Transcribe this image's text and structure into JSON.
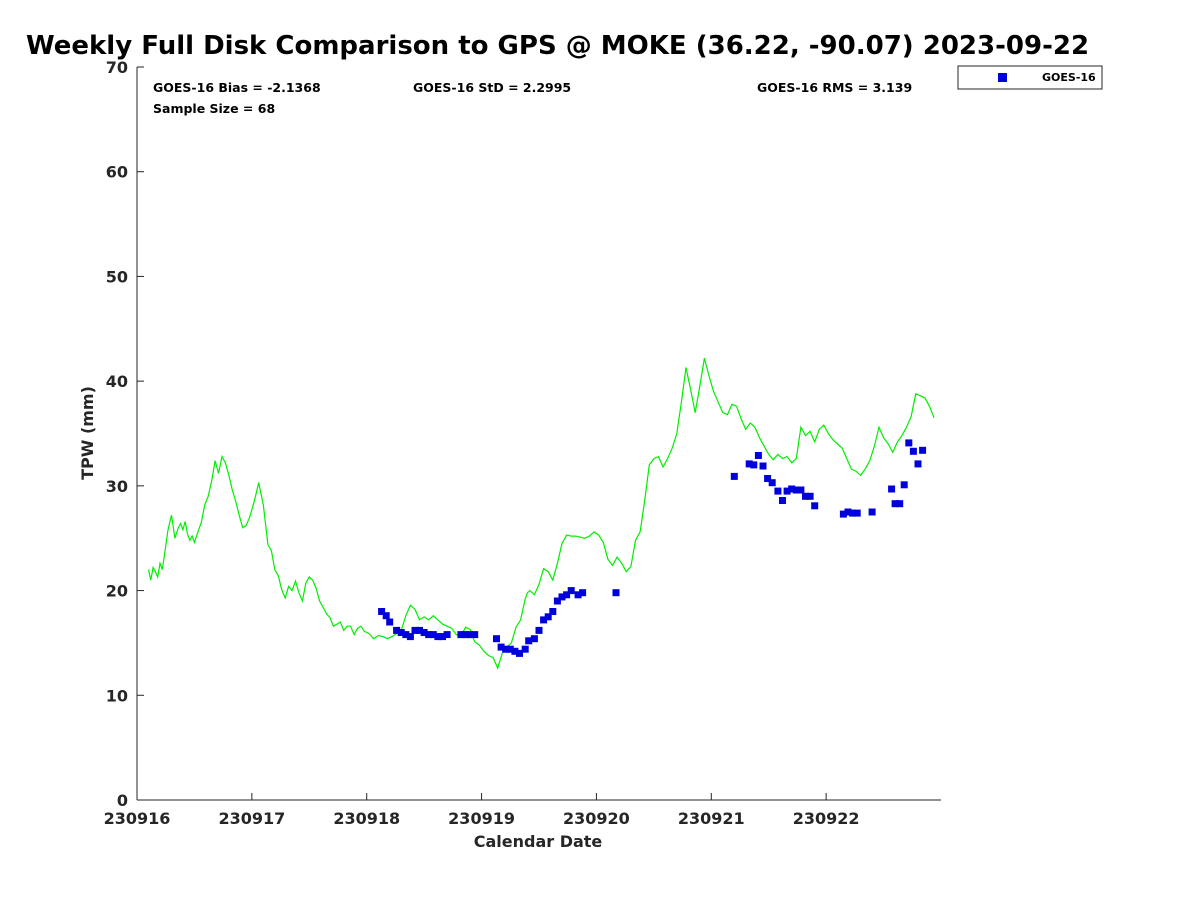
{
  "chart_data": {
    "type": "scatter",
    "title": "Weekly Full Disk Comparison to GPS @ MOKE (36.22, -90.07) 2023-09-22",
    "xlabel": "Calendar Date",
    "ylabel": "TPW (mm)",
    "xlim": [
      230916.0,
      230923.0
    ],
    "ylim": [
      0,
      70
    ],
    "x_ticks": [
      {
        "value": 230916,
        "label": "230916"
      },
      {
        "value": 230917,
        "label": "230917"
      },
      {
        "value": 230918,
        "label": "230918"
      },
      {
        "value": 230919,
        "label": "230919"
      },
      {
        "value": 230920,
        "label": "230920"
      },
      {
        "value": 230921,
        "label": "230921"
      },
      {
        "value": 230922,
        "label": "230922"
      }
    ],
    "y_ticks": [
      {
        "value": 0,
        "label": "0"
      },
      {
        "value": 10,
        "label": "10"
      },
      {
        "value": 20,
        "label": "20"
      },
      {
        "value": 30,
        "label": "30"
      },
      {
        "value": 40,
        "label": "40"
      },
      {
        "value": 50,
        "label": "50"
      },
      {
        "value": 60,
        "label": "60"
      },
      {
        "value": 70,
        "label": "70"
      }
    ],
    "stats": {
      "bias": "GOES-16 Bias = -2.1368",
      "std": "GOES-16 StD = 2.2995",
      "rms": "GOES-16 RMS = 3.139",
      "sample": "Sample Size = 68"
    },
    "legend": {
      "position": "top-right-outside",
      "label": "GOES-16"
    },
    "series": [
      {
        "name": "GPS",
        "kind": "line",
        "color": "#00ee00",
        "x": [
          230916.1,
          230916.12,
          230916.14,
          230916.16,
          230916.18,
          230916.2,
          230916.22,
          230916.24,
          230916.27,
          230916.3,
          230916.33,
          230916.36,
          230916.38,
          230916.4,
          230916.42,
          230916.44,
          230916.46,
          230916.48,
          230916.5,
          230916.53,
          230916.56,
          230916.59,
          230916.62,
          230916.65,
          230916.68,
          230916.71,
          230916.74,
          230916.77,
          230916.8,
          230916.83,
          230916.86,
          230916.89,
          230916.92,
          230916.95,
          230916.98,
          230917.02,
          230917.06,
          230917.1,
          230917.14,
          230917.17,
          230917.2,
          230917.23,
          230917.26,
          230917.29,
          230917.32,
          230917.35,
          230917.38,
          230917.41,
          230917.44,
          230917.47,
          230917.5,
          230917.53,
          230917.56,
          230917.59,
          230917.62,
          230917.65,
          230917.68,
          230917.71,
          230917.74,
          230917.77,
          230917.8,
          230917.83,
          230917.86,
          230917.89,
          230917.92,
          230917.95,
          230917.98,
          230918.02,
          230918.06,
          230918.1,
          230918.14,
          230918.18,
          230918.22,
          230918.26,
          230918.3,
          230918.34,
          230918.38,
          230918.42,
          230918.46,
          230918.5,
          230918.54,
          230918.58,
          230918.62,
          230918.66,
          230918.7,
          230918.74,
          230918.78,
          230918.82,
          230918.86,
          230918.9,
          230918.94,
          230918.98,
          230919.02,
          230919.06,
          230919.1,
          230919.14,
          230919.18,
          230919.22,
          230919.26,
          230919.3,
          230919.34,
          230919.38,
          230919.4,
          230919.42,
          230919.46,
          230919.5,
          230919.54,
          230919.58,
          230919.62,
          230919.66,
          230919.7,
          230919.74,
          230919.78,
          230919.82,
          230919.86,
          230919.9,
          230919.94,
          230919.98,
          230920.02,
          230920.06,
          230920.1,
          230920.14,
          230920.18,
          230920.22,
          230920.26,
          230920.3,
          230920.34,
          230920.38,
          230920.42,
          230920.46,
          230920.5,
          230920.54,
          230920.58,
          230920.62,
          230920.66,
          230920.7,
          230920.74,
          230920.78,
          230920.82,
          230920.86,
          230920.9,
          230920.94,
          230920.98,
          230921.02,
          230921.06,
          230921.1,
          230921.14,
          230921.18,
          230921.22,
          230921.26,
          230921.3,
          230921.34,
          230921.38,
          230921.42,
          230921.46,
          230921.5,
          230921.54,
          230921.58,
          230921.62,
          230921.66,
          230921.7,
          230921.74,
          230921.78,
          230921.82,
          230921.86,
          230921.9,
          230921.94,
          230921.98,
          230922.02,
          230922.06,
          230922.1,
          230922.14,
          230922.18,
          230922.22,
          230922.26,
          230922.3,
          230922.34,
          230922.38,
          230922.42,
          230922.46,
          230922.5,
          230922.54,
          230922.58,
          230922.62,
          230922.66,
          230922.7,
          230922.74,
          230922.78,
          230922.82,
          230922.86,
          230922.9,
          230922.94
        ],
        "y": [
          22.0,
          21.0,
          22.2,
          21.8,
          21.3,
          22.6,
          22.0,
          23.5,
          25.8,
          27.2,
          25.0,
          26.0,
          26.4,
          25.8,
          26.6,
          25.4,
          24.8,
          25.2,
          24.6,
          25.6,
          26.5,
          28.2,
          29.0,
          30.5,
          32.4,
          31.2,
          32.8,
          32.2,
          31.0,
          29.6,
          28.5,
          27.2,
          26.0,
          26.2,
          27.0,
          28.5,
          30.3,
          28.2,
          24.4,
          23.8,
          22.0,
          21.4,
          20.1,
          19.3,
          20.4,
          20.0,
          20.9,
          19.8,
          19.0,
          20.7,
          21.3,
          21.0,
          20.2,
          19.0,
          18.4,
          17.8,
          17.4,
          16.6,
          16.8,
          17.0,
          16.2,
          16.6,
          16.6,
          15.8,
          16.4,
          16.6,
          16.1,
          15.9,
          15.4,
          15.7,
          15.6,
          15.4,
          15.6,
          15.9,
          16.2,
          17.6,
          18.6,
          18.2,
          17.2,
          17.5,
          17.2,
          17.6,
          17.2,
          16.8,
          16.6,
          16.4,
          15.8,
          15.6,
          16.5,
          16.3,
          15.1,
          14.8,
          14.2,
          13.8,
          13.6,
          12.6,
          14.0,
          14.6,
          15.0,
          16.5,
          17.2,
          19.2,
          19.8,
          20.0,
          19.6,
          20.6,
          22.1,
          21.8,
          21.0,
          22.6,
          24.5,
          25.3,
          25.2,
          25.2,
          25.1,
          25.0,
          25.2,
          25.6,
          25.3,
          24.6,
          23.0,
          22.4,
          23.2,
          22.6,
          21.8,
          22.3,
          24.8,
          25.6,
          28.6,
          32.0,
          32.6,
          32.8,
          31.8,
          32.6,
          33.6,
          35.0,
          38.0,
          41.3,
          39.2,
          37.0,
          39.5,
          42.2,
          40.5,
          39.0,
          38.0,
          37.0,
          36.8,
          37.8,
          37.6,
          36.4,
          35.4,
          36.0,
          35.6,
          34.6,
          33.8,
          33.0,
          32.5,
          33.0,
          32.6,
          32.8,
          32.2,
          32.6,
          35.6,
          34.8,
          35.2,
          34.2,
          35.4,
          35.8,
          35.0,
          34.4,
          34.0,
          33.6,
          32.6,
          31.6,
          31.4,
          31.0,
          31.6,
          32.4,
          33.8,
          35.6,
          34.6,
          34.0,
          33.2,
          34.2,
          34.8,
          35.6,
          36.6,
          38.8,
          38.6,
          38.4,
          37.6,
          36.5
        ]
      },
      {
        "name": "GOES-16",
        "kind": "scatter",
        "color": "#0000dd",
        "x": [
          230918.13,
          230918.17,
          230918.2,
          230918.26,
          230918.3,
          230918.34,
          230918.38,
          230918.42,
          230918.46,
          230918.5,
          230918.54,
          230918.58,
          230918.62,
          230918.66,
          230918.7,
          230918.82,
          230918.86,
          230918.9,
          230918.94,
          230919.13,
          230919.17,
          230919.21,
          230919.25,
          230919.29,
          230919.33,
          230919.38,
          230919.41,
          230919.46,
          230919.5,
          230919.54,
          230919.58,
          230919.62,
          230919.66,
          230919.7,
          230919.74,
          230919.78,
          230919.84,
          230919.88,
          230920.17,
          230921.2,
          230921.33,
          230921.37,
          230921.41,
          230921.45,
          230921.49,
          230921.53,
          230921.58,
          230921.62,
          230921.66,
          230921.7,
          230921.74,
          230921.78,
          230921.82,
          230921.86,
          230921.9,
          230922.15,
          230922.19,
          230922.23,
          230922.27,
          230922.4,
          230922.57,
          230922.6,
          230922.64,
          230922.68,
          230922.72,
          230922.76,
          230922.8,
          230922.84
        ],
        "y": [
          18.0,
          17.6,
          17.0,
          16.2,
          16.0,
          15.8,
          15.6,
          16.2,
          16.2,
          16.0,
          15.8,
          15.8,
          15.6,
          15.6,
          15.8,
          15.8,
          15.8,
          15.8,
          15.8,
          15.4,
          14.6,
          14.4,
          14.4,
          14.2,
          14.0,
          14.4,
          15.2,
          15.4,
          16.2,
          17.2,
          17.5,
          18.0,
          19.0,
          19.4,
          19.6,
          20.0,
          19.6,
          19.8,
          19.8,
          30.9,
          32.1,
          32.0,
          32.9,
          31.9,
          30.7,
          30.3,
          29.5,
          28.6,
          29.5,
          29.7,
          29.6,
          29.6,
          29.0,
          29.0,
          28.1,
          27.3,
          27.5,
          27.4,
          27.4,
          27.5,
          29.7,
          28.3,
          28.3,
          30.1,
          34.1,
          33.3,
          32.1,
          33.4
        ]
      }
    ]
  }
}
